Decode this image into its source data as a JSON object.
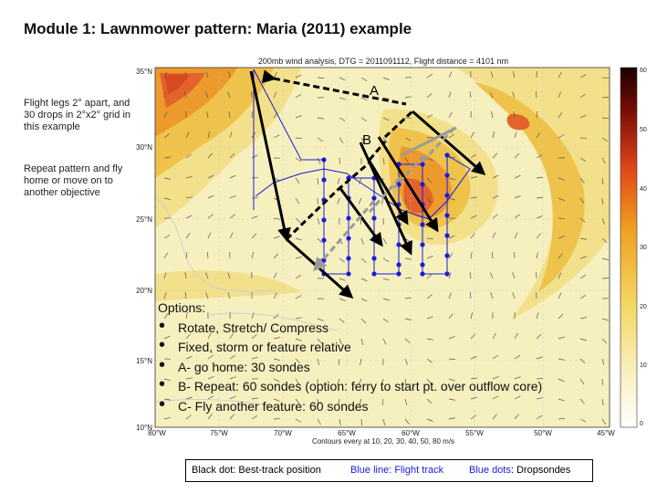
{
  "title": "Module 1:  Lawnmower pattern: Maria (2011) example",
  "side_text": {
    "block1": "Flight legs 2° apart, and 30 drops in 2°x2° grid in this example",
    "block2": "Repeat pattern and fly home or move on to another objective"
  },
  "map": {
    "header": "200mb wind analysis, DTG = 2011091112, Flight distance = 4101 nm",
    "footer": "Contours every at 10, 20, 30, 40, 50, 80 m/s",
    "lat_labels": [
      "35°N",
      "30°N",
      "25°N",
      "20°N",
      "15°N",
      "10°N"
    ],
    "lon_labels": [
      "80°W",
      "75°W",
      "70°W",
      "65°W",
      "60°W",
      "55°W",
      "50°W",
      "45°W"
    ],
    "colorbar_labels": [
      "60",
      "50",
      "40",
      "30",
      "20",
      "10",
      "0"
    ],
    "annotation_a": "A",
    "annotation_b": "B"
  },
  "options": {
    "title": "Options:",
    "items": [
      "Rotate, Stretch/ Compress",
      "Fixed, storm or feature relative",
      "A- go home: 30 sondes",
      "B- Repeat: 60 sondes (option: ferry to start pt. over outflow core)",
      "C- Fly another feature: 60 sondes"
    ]
  },
  "legend": {
    "black_dot": "Black dot: Best-track position",
    "blue_line_key": "Blue line",
    "blue_line_val": ": Flight track",
    "blue_dots_key": "Blue dots",
    "blue_dots_val": ": Dropsondes"
  },
  "colors": {
    "flight_track": "#1a1adf",
    "pattern_a": "#000000",
    "pattern_b": "#9a9a9a",
    "wind_low": "#f7f2c0",
    "wind_mid": "#f0c23a",
    "wind_high": "#e0461a"
  }
}
